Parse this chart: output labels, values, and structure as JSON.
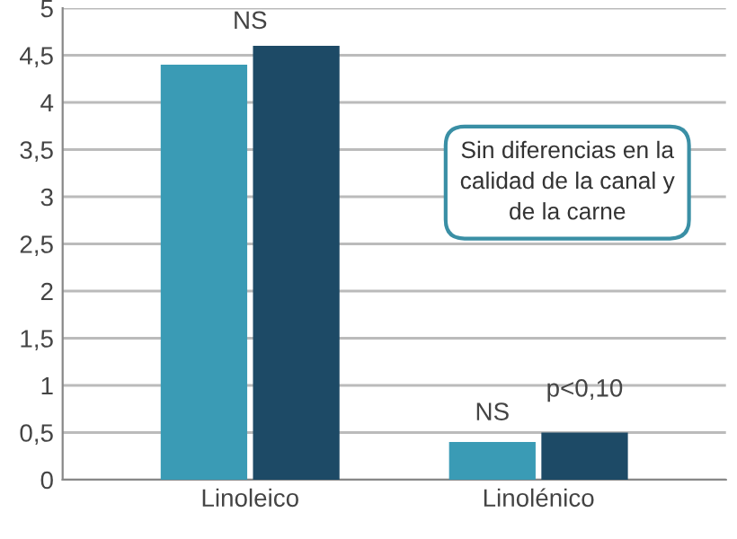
{
  "chart_data": {
    "type": "bar",
    "categories": [
      "Linoleico",
      "Linolénico"
    ],
    "series": [
      {
        "color": "#3a9bb5",
        "values": [
          4.4,
          0.4
        ]
      },
      {
        "color": "#1d4a66",
        "values": [
          4.6,
          0.5
        ]
      }
    ],
    "ylim": [
      0,
      5
    ],
    "yticks": [
      0,
      {
        "value": 0.5,
        "label": "0,5"
      },
      1,
      {
        "value": 1.5,
        "label": "1,5"
      },
      2,
      {
        "value": 2.5,
        "label": "2,5"
      },
      3,
      {
        "value": 3.5,
        "label": "3,5"
      },
      4,
      {
        "value": 4.5,
        "label": "4,5"
      },
      5
    ],
    "grid": "y",
    "annotations": [
      "NS",
      "NS",
      "p<0,10",
      "Sin diferencias en la calidad de la canal y de la carne"
    ]
  }
}
